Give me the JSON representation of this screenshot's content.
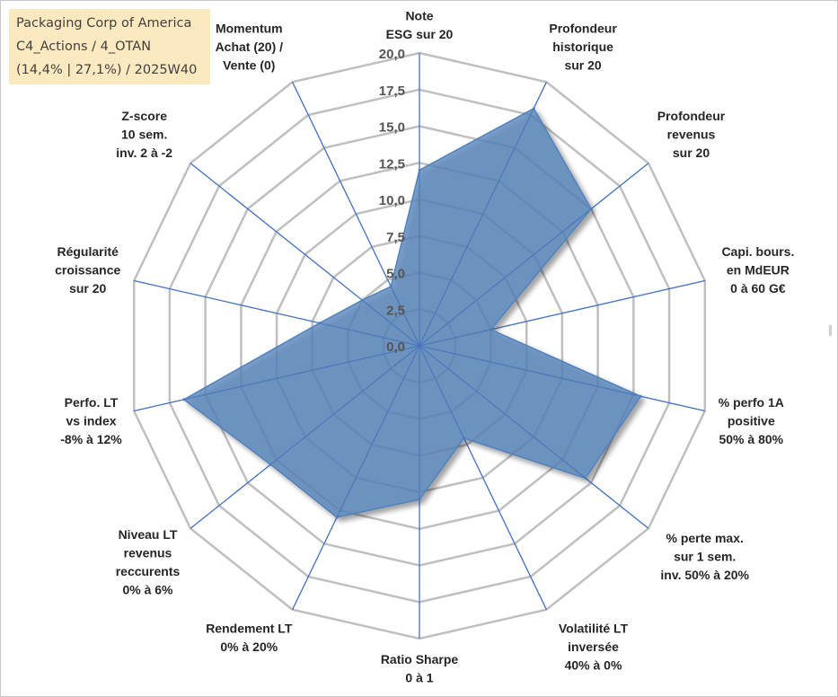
{
  "title": {
    "line1": "Packaging Corp of America",
    "line2": "C4_Actions / 4_OTAN",
    "line3": "(14,4% | 27,1%) / 2025W40"
  },
  "chart_data": {
    "type": "radar",
    "rmin": 0,
    "rmax": 20,
    "tick_step": 2.5,
    "tick_labels": [
      "0,0",
      "2,5",
      "5,0",
      "7,5",
      "10,0",
      "12,5",
      "15,0",
      "17,5",
      "20,0"
    ],
    "axes": [
      [
        "Note",
        "ESG sur 20"
      ],
      [
        "Profondeur",
        "historique",
        "sur 20"
      ],
      [
        "Profondeur",
        "revenus",
        "sur 20"
      ],
      [
        "Capi. bours.",
        "en MdEUR",
        "0 à 60 G€"
      ],
      [
        "% perfo 1A",
        "positive",
        "50% à 80%"
      ],
      [
        "% perte max.",
        "sur 1 sem.",
        "inv. 50% à 20%"
      ],
      [
        "Volatilité LT",
        "inversée",
        "40% à 0%"
      ],
      [
        "Ratio Sharpe",
        "0 à 1"
      ],
      [
        "Rendement LT",
        "0% à 20%"
      ],
      [
        "Niveau LT",
        "revenus",
        "reccurents",
        "0% à 6%"
      ],
      [
        "Perfo. LT",
        "vs index",
        "-8% à 12%"
      ],
      [
        "Régularité",
        "croissance",
        "sur 20"
      ],
      [
        "Z-score",
        "10 sem.",
        "inv. 2 à -2"
      ],
      [
        "Momentum",
        "Achat (20) /",
        "Vente (0)"
      ]
    ],
    "series": [
      {
        "values": [
          12.0,
          18.0,
          15.0,
          5.0,
          15.5,
          14.5,
          7.0,
          10.5,
          13.0,
          13.0,
          16.5,
          7.0,
          5.0,
          4.5
        ],
        "color": "#4f81bd"
      }
    ],
    "grid": true,
    "grid_color": "#bfbfbf",
    "axis_line_color": "#4472c4",
    "fill_color": "#5b87bb",
    "fill_opacity": 0.8,
    "legend": "none"
  }
}
